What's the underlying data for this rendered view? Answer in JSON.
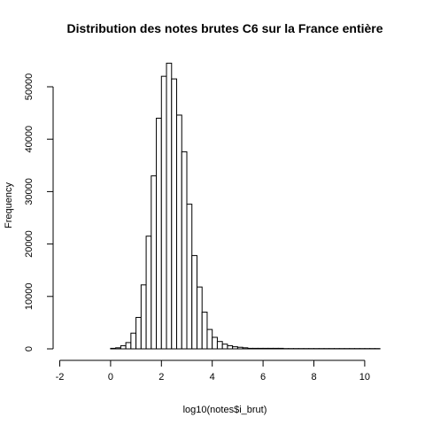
{
  "chart_data": {
    "type": "histogram",
    "title": "Distribution des notes brutes C6 sur la France entière",
    "xlabel": "log10(notes$i_brut)",
    "ylabel": "Frequency",
    "xlim": [
      -2,
      10.5
    ],
    "ylim": [
      0,
      55000
    ],
    "x_ticks": [
      -2,
      0,
      2,
      4,
      6,
      8,
      10
    ],
    "y_ticks": [
      0,
      10000,
      20000,
      30000,
      40000,
      50000
    ],
    "grid": false,
    "bin_start": -1.8,
    "bin_width": 0.2,
    "values": [
      0,
      0,
      0,
      0,
      0,
      0,
      0,
      0,
      0,
      100,
      200,
      600,
      1200,
      3000,
      6000,
      12200,
      21500,
      33000,
      44000,
      52000,
      54500,
      51500,
      44600,
      37600,
      27600,
      17800,
      11800,
      7000,
      3700,
      2200,
      1400,
      900,
      600,
      400,
      300,
      200,
      100,
      100,
      100,
      100,
      100,
      100,
      100,
      50,
      50,
      50,
      50,
      50,
      50,
      50,
      50,
      50,
      50,
      50,
      50,
      50,
      50,
      50,
      50,
      50,
      50,
      50
    ]
  }
}
